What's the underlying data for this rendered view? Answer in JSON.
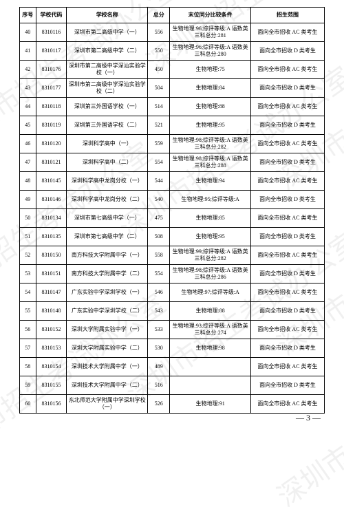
{
  "table": {
    "headers": {
      "seq": "序号",
      "code": "学校代码",
      "name": "学校名称",
      "total": "总分",
      "tiebreak": "末位同分比较条件",
      "scope": "招生范围"
    },
    "rows": [
      {
        "seq": "40",
        "code": "8310116",
        "name": "深圳市第二高级中学（一）",
        "total": "556",
        "tiebreak": "生物地理:96;综评等级:A 语数英三科总分:281",
        "scope": "面向全市招收 AC 类考生"
      },
      {
        "seq": "41",
        "code": "8310117",
        "name": "深圳市第二高级中学（二）",
        "total": "550",
        "tiebreak": "生物地理:96;综评等级:A 语数英三科总分:280",
        "scope": "面向全市招收 D 类考生"
      },
      {
        "seq": "42",
        "code": "8310176",
        "name": "深圳市第二高级中学深汕实验学校（一）",
        "total": "450",
        "tiebreak": "生物地理:75",
        "scope": "面向全市招收 AC 类考生"
      },
      {
        "seq": "43",
        "code": "8310177",
        "name": "深圳市第二高级中学深汕实验学校（二）",
        "total": "504",
        "tiebreak": "生物地理:84",
        "scope": "面向全市招收 D 类考生"
      },
      {
        "seq": "44",
        "code": "8310118",
        "name": "深圳第三外国语学校（一）",
        "total": "514",
        "tiebreak": "生物地理:88",
        "scope": "面向全市招收 AC 类考生"
      },
      {
        "seq": "45",
        "code": "8310119",
        "name": "深圳第三外国语学校（二）",
        "total": "521",
        "tiebreak": "生物地理:95",
        "scope": "面向全市招收 D 类考生"
      },
      {
        "seq": "46",
        "code": "8310120",
        "name": "深圳科学高中（一）",
        "total": "559",
        "tiebreak": "生物地理:98;综评等级:A 语数英三科总分:282",
        "scope": "面向全市招收 AC 类考生"
      },
      {
        "seq": "47",
        "code": "8310121",
        "name": "深圳科学高中（二）",
        "total": "554",
        "tiebreak": "生物地理:98;综评等级:A 语数英三科总分:288",
        "scope": "面向全市招收 D 类考生"
      },
      {
        "seq": "48",
        "code": "8310145",
        "name": "深圳科学高中龙岗分校（一）",
        "total": "544",
        "tiebreak": "生物地理:94",
        "scope": "面向全市招收 AC 类考生"
      },
      {
        "seq": "49",
        "code": "8310146",
        "name": "深圳科学高中龙岗分校（二）",
        "total": "540",
        "tiebreak": "生物地理:95;综评等级:A",
        "scope": "面向全市招收 D 类考生"
      },
      {
        "seq": "50",
        "code": "8310134",
        "name": "深圳市第七高级中学（一）",
        "total": "475",
        "tiebreak": "生物地理:85",
        "scope": "面向全市招收 AC 类考生"
      },
      {
        "seq": "51",
        "code": "8310135",
        "name": "深圳市第七高级中学（二）",
        "total": "508",
        "tiebreak": "生物地理:95",
        "scope": "面向全市招收 D 类考生"
      },
      {
        "seq": "52",
        "code": "8310150",
        "name": "南方科技大学附属中学（一）",
        "total": "558",
        "tiebreak": "生物地理:99;综评等级:A 语数英三科总分:282",
        "scope": "面向全市招收 AC 类考生"
      },
      {
        "seq": "53",
        "code": "8310151",
        "name": "南方科技大学附属中学（二）",
        "total": "554",
        "tiebreak": "生物地理:98;综评等级:A 语数英三科总分:286",
        "scope": "面向全市招收 D 类考生"
      },
      {
        "seq": "54",
        "code": "8310147",
        "name": "广东实验中学深圳学校（一）",
        "total": "546",
        "tiebreak": "生物地理:97;综评等级:A",
        "scope": "面向全市招收 AC 类考生"
      },
      {
        "seq": "55",
        "code": "8310148",
        "name": "广东实验中学深圳学校（二）",
        "total": "543",
        "tiebreak": "生物地理:88",
        "scope": "面向全市招收 D 类考生"
      },
      {
        "seq": "56",
        "code": "8310152",
        "name": "深圳大学附属实验中学（一）",
        "total": "533",
        "tiebreak": "生物地理:93;综评等级:A 语数英三科总分:274",
        "scope": "面向全市招收 AC 类考生"
      },
      {
        "seq": "57",
        "code": "8310153",
        "name": "深圳大学附属实验中学（二）",
        "total": "530",
        "tiebreak": "生物地理:98",
        "scope": "面向全市招收 D 类考生"
      },
      {
        "seq": "58",
        "code": "8310154",
        "name": "深圳技术大学附属中学（一）",
        "total": "489",
        "tiebreak": "",
        "scope": "面向全市招收 AC 类考生"
      },
      {
        "seq": "59",
        "code": "8310155",
        "name": "深圳技术大学附属中学（二）",
        "total": "516",
        "tiebreak": "",
        "scope": "面向全市招收 D 类考生"
      },
      {
        "seq": "60",
        "code": "8310156",
        "name": "东北师范大学附属中学深圳学校（一）",
        "total": "526",
        "tiebreak": "生物地理:91",
        "scope": "面向全市招收 AC 类考生"
      }
    ]
  },
  "page_number": "— 3 —",
  "watermark_text": "深圳市招生考试办公室"
}
